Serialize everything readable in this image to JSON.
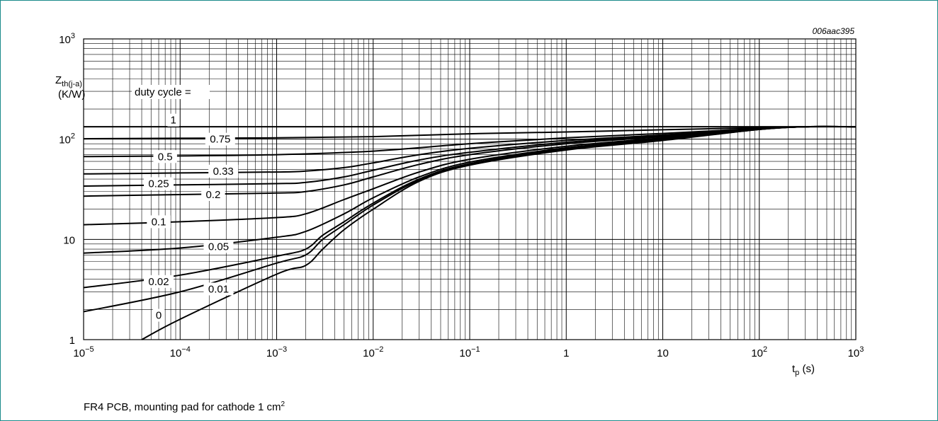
{
  "chart_data": {
    "type": "line",
    "title": "",
    "reference_code": "006aac395",
    "xscale": "log",
    "yscale": "log",
    "xlim": [
      1e-05,
      1000
    ],
    "ylim": [
      1,
      1000
    ],
    "x_ticks": [
      {
        "base": "10",
        "exp": "−5"
      },
      {
        "base": "10",
        "exp": "−4"
      },
      {
        "base": "10",
        "exp": "−3"
      },
      {
        "base": "10",
        "exp": "−2"
      },
      {
        "base": "10",
        "exp": "−1"
      },
      {
        "base": "1",
        "exp": ""
      },
      {
        "base": "10",
        "exp": ""
      },
      {
        "base": "10",
        "exp": "2"
      },
      {
        "base": "10",
        "exp": "3"
      }
    ],
    "y_ticks": [
      {
        "base": "1",
        "exp": ""
      },
      {
        "base": "10",
        "exp": ""
      },
      {
        "base": "10",
        "exp": "2"
      },
      {
        "base": "10",
        "exp": "3"
      }
    ],
    "xlabel": {
      "main": "t",
      "sub": "p",
      "unit": " (s)"
    },
    "ylabel": {
      "main": "Z",
      "sub": "th(j-a)",
      "unit": "(K/W)"
    },
    "legend_title": "duty cycle =",
    "grid": true,
    "series": [
      {
        "name": "1",
        "label_x": 8.5e-05,
        "label_y": 155,
        "x": [
          1e-05,
          1000
        ],
        "y": [
          133,
          133
        ]
      },
      {
        "name": "0.75",
        "label_x": 0.00026,
        "label_y": 100,
        "x": [
          1e-05,
          0.0001,
          0.001,
          0.01,
          0.1,
          1,
          10,
          100,
          300,
          1000
        ],
        "y": [
          101,
          102,
          103,
          106,
          113,
          118,
          124,
          130,
          133,
          133
        ]
      },
      {
        "name": "0.5",
        "label_x": 7e-05,
        "label_y": 67,
        "x": [
          1e-05,
          0.0001,
          0.001,
          0.01,
          0.1,
          1,
          10,
          100,
          300,
          1000
        ],
        "y": [
          67,
          68,
          70,
          76,
          90,
          103,
          114,
          128,
          133,
          133
        ]
      },
      {
        "name": "0.33",
        "label_x": 0.00028,
        "label_y": 48,
        "x": [
          1e-05,
          0.0001,
          0.001,
          0.002,
          0.005,
          0.01,
          0.03,
          0.1,
          1,
          10,
          100,
          300,
          1000
        ],
        "y": [
          45,
          46,
          47,
          48,
          52,
          58,
          70,
          81,
          97,
          110,
          127,
          133,
          133
        ]
      },
      {
        "name": "0.25",
        "label_x": 6e-05,
        "label_y": 36,
        "x": [
          1e-05,
          0.0001,
          0.001,
          0.002,
          0.005,
          0.01,
          0.03,
          0.1,
          1,
          10,
          100,
          300,
          1000
        ],
        "y": [
          34,
          35,
          36,
          37,
          42,
          49,
          62,
          74,
          93,
          108,
          127,
          133,
          133
        ]
      },
      {
        "name": "0.2",
        "label_x": 0.00022,
        "label_y": 28,
        "x": [
          1e-05,
          0.0001,
          0.001,
          0.002,
          0.005,
          0.01,
          0.03,
          0.1,
          1,
          10,
          100,
          300,
          1000
        ],
        "y": [
          27,
          28,
          29,
          30,
          35,
          42,
          56,
          70,
          90,
          106,
          126,
          133,
          133
        ]
      },
      {
        "name": "0.1",
        "label_x": 6e-05,
        "label_y": 15,
        "x": [
          1e-05,
          0.0001,
          0.001,
          0.002,
          0.005,
          0.01,
          0.03,
          0.1,
          1,
          10,
          100,
          300,
          1000
        ],
        "y": [
          14,
          15,
          16.5,
          18,
          25,
          32,
          47,
          63,
          85,
          103,
          126,
          133,
          133
        ]
      },
      {
        "name": "0.05",
        "label_x": 0.00025,
        "label_y": 8.5,
        "x": [
          1e-05,
          0.0001,
          0.001,
          0.002,
          0.005,
          0.01,
          0.03,
          0.1,
          1,
          10,
          100,
          300,
          1000
        ],
        "y": [
          7.3,
          8.2,
          10.5,
          12,
          18,
          26,
          42,
          59,
          82,
          101,
          125,
          133,
          133
        ]
      },
      {
        "name": "0.02",
        "label_x": 6e-05,
        "label_y": 3.8,
        "x": [
          1e-05,
          0.0001,
          0.001,
          0.002,
          0.003,
          0.005,
          0.01,
          0.03,
          0.1,
          1,
          10,
          100,
          300,
          1000
        ],
        "y": [
          3.3,
          4.4,
          6.8,
          8,
          11,
          15,
          23,
          40,
          57,
          80,
          99,
          125,
          133,
          133
        ]
      },
      {
        "name": "0.01",
        "label_x": 0.00025,
        "label_y": 3.2,
        "x": [
          1e-05,
          0.0001,
          0.001,
          0.002,
          0.003,
          0.005,
          0.01,
          0.03,
          0.1,
          1,
          10,
          100,
          300,
          1000
        ],
        "y": [
          1.9,
          3.0,
          5.8,
          7,
          10,
          14,
          22,
          39,
          56,
          79,
          98,
          125,
          133,
          133
        ]
      },
      {
        "name": "0",
        "label_x": 6e-05,
        "label_y": 1.75,
        "x": [
          4e-05,
          0.0001,
          0.001,
          0.002,
          0.003,
          0.005,
          0.01,
          0.03,
          0.1,
          1,
          10,
          100,
          300,
          1000
        ],
        "y": [
          1.0,
          1.6,
          4.5,
          5.5,
          8,
          12.5,
          20,
          38,
          55,
          78,
          97,
          125,
          133,
          133
        ]
      }
    ]
  },
  "caption": {
    "text": "FR4 PCB, mounting pad for cathode 1 cm",
    "sup": "2"
  }
}
